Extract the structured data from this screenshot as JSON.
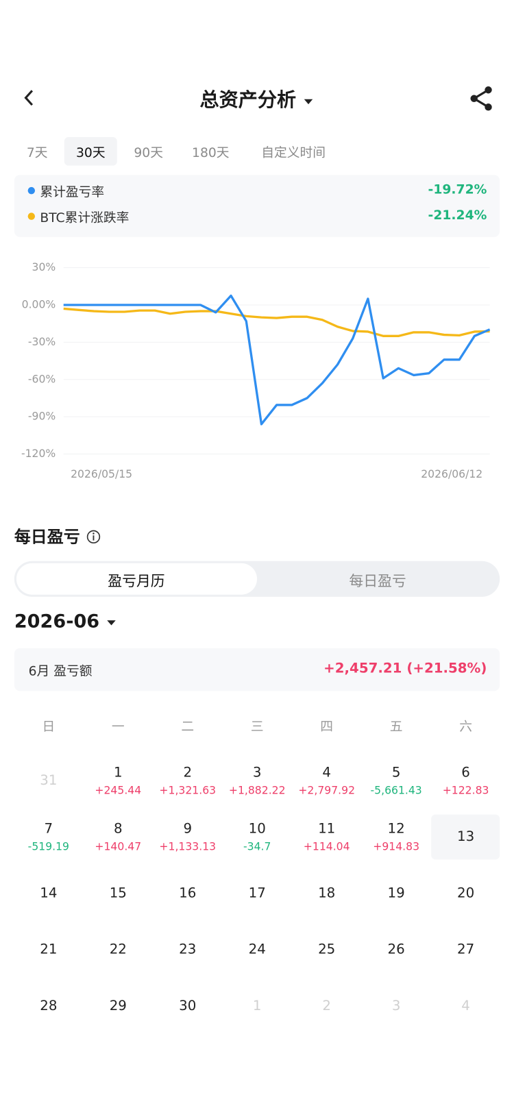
{
  "header": {
    "title": "总资产分析"
  },
  "tabs": {
    "items": [
      "7天",
      "30天",
      "90天",
      "180天",
      "自定义时间"
    ],
    "active": 1
  },
  "chart_data": {
    "type": "line",
    "categories": [
      "2026/05/15",
      null,
      null,
      null,
      null,
      null,
      null,
      null,
      null,
      null,
      null,
      null,
      null,
      null,
      null,
      null,
      null,
      null,
      null,
      null,
      null,
      null,
      null,
      null,
      null,
      null,
      null,
      null,
      "2026/06/12"
    ],
    "series": [
      {
        "name": "累计盈亏率",
        "summary": "-19.72%",
        "color": "#2f8ef0",
        "values": [
          0,
          0,
          0,
          0,
          0,
          0,
          0,
          0,
          0,
          0,
          -6,
          7.5,
          -13,
          -96,
          -80.5,
          -80.5,
          -75,
          -63,
          -48,
          -27,
          5,
          -59,
          -51,
          -56.5,
          -55,
          -44,
          -44,
          -25,
          -19.72
        ]
      },
      {
        "name": "BTC累计涨跌率",
        "summary": "-21.24%",
        "color": "#f5b818",
        "values": [
          -3,
          -4,
          -5,
          -5.5,
          -5.5,
          -4.5,
          -4.5,
          -7,
          -5.5,
          -5,
          -5,
          -7,
          -9,
          -10,
          -10.5,
          -9.5,
          -9.5,
          -12,
          -17.5,
          -21,
          -21.5,
          -25,
          -25,
          -22,
          -22,
          -24,
          -24.5,
          -21.5,
          -21.24
        ]
      }
    ],
    "ylim": [
      -120,
      30
    ],
    "yticks": [
      {
        "value": 30,
        "label": "30%"
      },
      {
        "value": 0,
        "label": "0.00%"
      },
      {
        "value": -30,
        "label": "-30%"
      },
      {
        "value": -60,
        "label": "-60%"
      },
      {
        "value": -90,
        "label": "-90%"
      },
      {
        "value": -120,
        "label": "-120%"
      }
    ],
    "grid": true
  },
  "daily": {
    "title": "每日盈亏",
    "toggle": [
      "盈亏月历",
      "每日盈亏"
    ],
    "active": 0
  },
  "calendar": {
    "month": "2026-06",
    "summary_label": "6月 盈亏额",
    "summary_value": "+2,457.21 (+21.58%)",
    "weekdays": [
      "日",
      "一",
      "二",
      "三",
      "四",
      "五",
      "六"
    ],
    "today": 13,
    "weeks": [
      [
        {
          "day": 31
        },
        {
          "day": 1,
          "pnl": "+245.44"
        },
        {
          "day": 2,
          "pnl": "+1,321.63"
        },
        {
          "day": 3,
          "pnl": "+1,882.22"
        },
        {
          "day": 4,
          "pnl": "+2,797.92"
        },
        {
          "day": 5,
          "pnl": "-5,661.43"
        },
        {
          "day": 6,
          "pnl": "+122.83"
        }
      ],
      [
        {
          "day": 7,
          "pnl": "-519.19"
        },
        {
          "day": 8,
          "pnl": "+140.47"
        },
        {
          "day": 9,
          "pnl": "+1,133.13"
        },
        {
          "day": 10,
          "pnl": "-34.7"
        },
        {
          "day": 11,
          "pnl": "+114.04"
        },
        {
          "day": 12,
          "pnl": "+914.83"
        },
        {
          "day": 13
        }
      ],
      [
        {
          "day": 14
        },
        {
          "day": 15
        },
        {
          "day": 16
        },
        {
          "day": 17
        },
        {
          "day": 18
        },
        {
          "day": 19
        },
        {
          "day": 20
        }
      ],
      [
        {
          "day": 21
        },
        {
          "day": 22
        },
        {
          "day": 23
        },
        {
          "day": 24
        },
        {
          "day": 25
        },
        {
          "day": 26
        },
        {
          "day": 27
        }
      ],
      [
        {
          "day": 28
        },
        {
          "day": 29
        },
        {
          "day": 30
        },
        {
          "day": 1
        },
        {
          "day": 2
        },
        {
          "day": 3
        },
        {
          "day": 4
        }
      ]
    ]
  }
}
